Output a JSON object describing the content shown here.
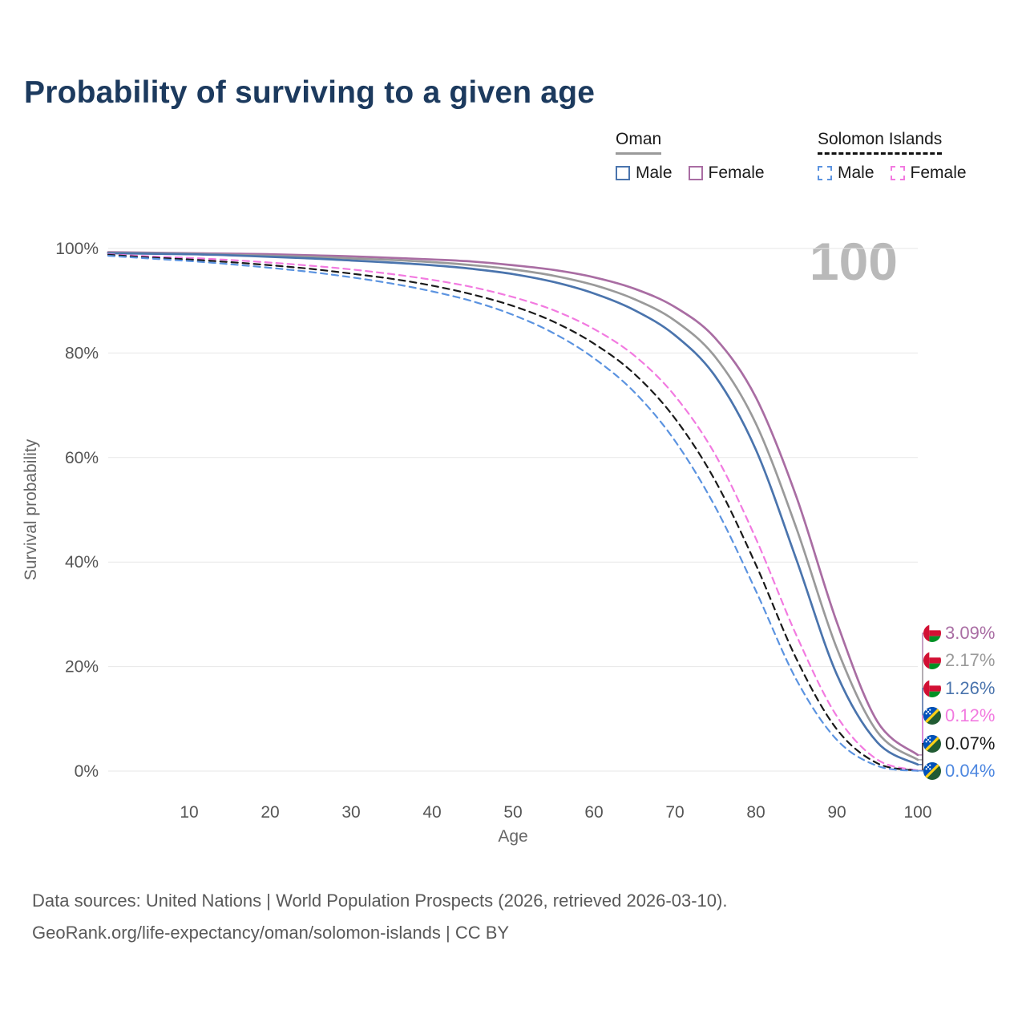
{
  "title": "Probability of surviving to a given age",
  "watermark": "100",
  "legend": {
    "oman": {
      "title": "Oman",
      "male": "Male",
      "female": "Female"
    },
    "solomon": {
      "title": "Solomon Islands",
      "male": "Male",
      "female": "Female"
    }
  },
  "chart_data": {
    "type": "line",
    "title": "Probability of surviving to a given age",
    "xlabel": "Age",
    "ylabel": "Survival probability",
    "xlim": [
      0,
      100
    ],
    "ylim": [
      0,
      100
    ],
    "grid": true,
    "legend_position": "top-right",
    "x_ticks": [
      10,
      20,
      30,
      40,
      50,
      60,
      70,
      80,
      90,
      100
    ],
    "y_ticks": [
      {
        "value": 0,
        "label": "0%"
      },
      {
        "value": 20,
        "label": "20%"
      },
      {
        "value": 40,
        "label": "40%"
      },
      {
        "value": 60,
        "label": "60%"
      },
      {
        "value": 80,
        "label": "80%"
      },
      {
        "value": 100,
        "label": "100%"
      }
    ],
    "x": [
      0,
      5,
      10,
      15,
      20,
      25,
      30,
      35,
      40,
      45,
      50,
      55,
      60,
      65,
      70,
      75,
      80,
      85,
      90,
      95,
      100
    ],
    "series": [
      {
        "id": "oman-female",
        "name": "Oman Female",
        "color": "#a96da3",
        "dashed": false,
        "flag": "oman",
        "end_label": "3.09%",
        "label_color": "#a96da3",
        "values": [
          99.3,
          99.2,
          99.1,
          99.0,
          98.9,
          98.7,
          98.5,
          98.2,
          97.9,
          97.5,
          96.8,
          95.9,
          94.5,
          92.3,
          88.8,
          82.8,
          71.5,
          52.5,
          28.5,
          9.5,
          3.09
        ]
      },
      {
        "id": "oman-both",
        "name": "Oman Both sexes",
        "color": "#9a9a9a",
        "dashed": false,
        "flag": "oman",
        "end_label": "2.17%",
        "label_color": "#9a9a9a",
        "values": [
          99.2,
          99.1,
          99.0,
          98.8,
          98.6,
          98.4,
          98.1,
          97.8,
          97.4,
          96.8,
          96.0,
          94.8,
          93.0,
          90.3,
          86.2,
          79.2,
          66.5,
          46.5,
          23.5,
          7.5,
          2.17
        ]
      },
      {
        "id": "oman-male",
        "name": "Oman Male",
        "color": "#4a74ad",
        "dashed": false,
        "flag": "oman",
        "end_label": "1.26%",
        "label_color": "#4a74ad",
        "values": [
          99.1,
          99.0,
          98.9,
          98.7,
          98.4,
          98.1,
          97.7,
          97.3,
          96.8,
          96.1,
          95.1,
          93.6,
          91.4,
          88.2,
          83.4,
          75.5,
          61.5,
          40.5,
          18.5,
          5.5,
          1.26
        ]
      },
      {
        "id": "si-female",
        "name": "Solomon Islands Female",
        "color": "#f27ae0",
        "dashed": true,
        "flag": "solomon",
        "end_label": "0.12%",
        "label_color": "#f27ae0",
        "values": [
          98.9,
          98.5,
          98.2,
          97.8,
          97.3,
          96.7,
          96.0,
          95.1,
          94.0,
          92.6,
          90.7,
          88.2,
          84.6,
          79.5,
          71.8,
          60.5,
          44.5,
          26.0,
          10.5,
          2.2,
          0.12
        ]
      },
      {
        "id": "si-both",
        "name": "Solomon Islands Both sexes",
        "color": "#1a1a1a",
        "dashed": true,
        "flag": "solomon",
        "end_label": "0.07%",
        "label_color": "#1a1a1a",
        "values": [
          98.8,
          98.3,
          97.9,
          97.4,
          96.8,
          96.1,
          95.2,
          94.2,
          92.9,
          91.2,
          89.0,
          86.0,
          81.8,
          76.0,
          67.5,
          55.5,
          39.5,
          21.5,
          8.0,
          1.5,
          0.07
        ]
      },
      {
        "id": "si-male",
        "name": "Solomon Islands Male",
        "color": "#5b93e0",
        "dashed": true,
        "flag": "solomon",
        "end_label": "0.04%",
        "label_color": "#4d87e0",
        "values": [
          98.6,
          98.1,
          97.6,
          97.0,
          96.3,
          95.5,
          94.5,
          93.3,
          91.8,
          89.9,
          87.3,
          83.8,
          79.0,
          72.5,
          63.2,
          50.5,
          34.5,
          17.5,
          6.0,
          1.0,
          0.04
        ]
      }
    ]
  },
  "footer": {
    "line1": "Data sources: United Nations | World Population Prospects (2026, retrieved 2026-03-10).",
    "line2": "GeoRank.org/life-expectancy/oman/solomon-islands | CC BY"
  }
}
